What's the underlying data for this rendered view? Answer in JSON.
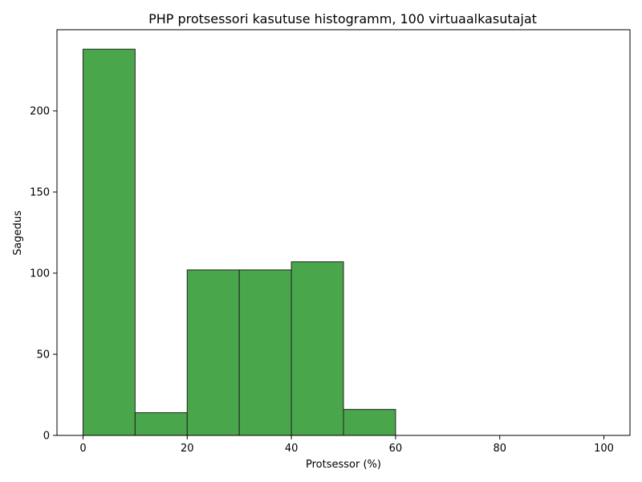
{
  "chart_data": {
    "type": "bar",
    "title": "PHP protsessori kasutuse histogramm, 100 virtuaalkasutajat",
    "xlabel": "Protsessor (%)",
    "ylabel": "Sagedus",
    "bin_edges": [
      0,
      10,
      20,
      30,
      40,
      50,
      60,
      70,
      80,
      90,
      100
    ],
    "values": [
      238,
      14,
      102,
      102,
      107,
      16,
      0,
      0,
      0,
      0
    ],
    "xlim": [
      -5,
      105
    ],
    "ylim": [
      0,
      250
    ],
    "xticks": [
      0,
      20,
      40,
      60,
      80,
      100
    ],
    "yticks": [
      0,
      50,
      100,
      150,
      200
    ],
    "bar_color": "#4aa64a",
    "edge_color": "#222222",
    "grid": false,
    "legend": "none"
  }
}
